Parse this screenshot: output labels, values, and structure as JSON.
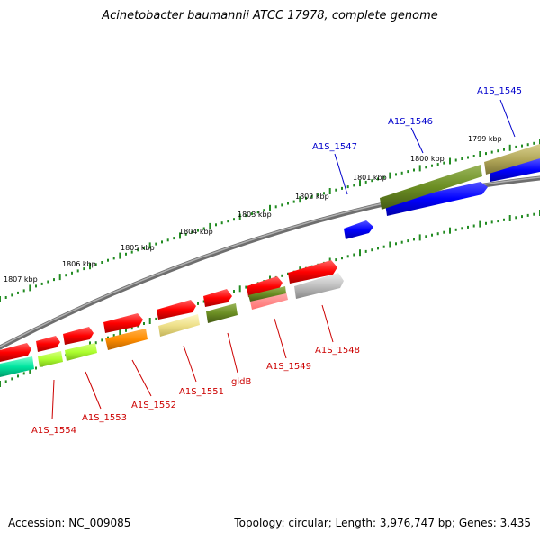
{
  "title": "Acinetobacter baumannii ATCC 17978, complete genome",
  "footer": {
    "accession": "Accession: NC_009085",
    "topology": "Topology: circular; Length: 3,976,747 bp; Genes: 3,435"
  },
  "scale_labels": [
    "1799 kbp",
    "1800 kbp",
    "1801 kbp",
    "1802 kbp",
    "1803 kbp",
    "1804 kbp",
    "1805 kbp",
    "1806 kbp",
    "1807 kbp"
  ],
  "genes_top": [
    {
      "label": "A1S_1545",
      "color": "#b3a85a"
    },
    {
      "label": "A1S_1546",
      "color": "#6b8e23"
    },
    {
      "label": "A1S_1547",
      "color": "#0000ff"
    },
    {
      "label": "",
      "color": "#0000ff"
    }
  ],
  "genes_bottom": [
    {
      "label": "A1S_1548",
      "color": "#c0c0c0"
    },
    {
      "label": "A1S_1549",
      "color": "#6b8e23"
    },
    {
      "label": "gidB",
      "color": "#6b8e23"
    },
    {
      "label": "A1S_1551",
      "color": "#eee08a"
    },
    {
      "label": "A1S_1552",
      "color": "#ff8c00"
    },
    {
      "label": "A1S_1553",
      "color": "#adff2f"
    },
    {
      "label": "A1S_1554",
      "color": "#adff2f"
    },
    {
      "label": "",
      "color": "#00e5a0"
    }
  ],
  "colors": {
    "backbone": "#808080",
    "tick": "#228b22",
    "top_label": "#0000cc",
    "bottom_label": "#cc0000",
    "unlabeled_gene": "#ff0000"
  }
}
